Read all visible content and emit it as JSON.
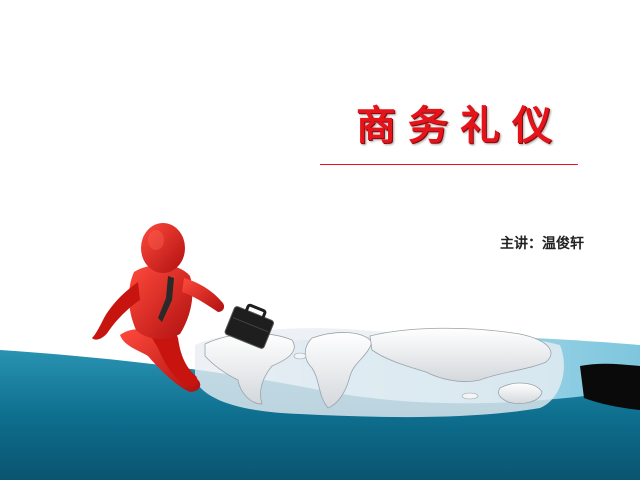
{
  "slide": {
    "title": "商务礼仪",
    "presenter": "主讲：温俊轩"
  },
  "colors": {
    "title_red": "#e5141a",
    "wave_teal": "#0e6f8f",
    "wave_light": "#8fd0e4",
    "figure_red": "#e2201a"
  },
  "icons": {
    "figure": "red-3d-businessman-with-briefcase",
    "map": "white-3d-world-map"
  }
}
